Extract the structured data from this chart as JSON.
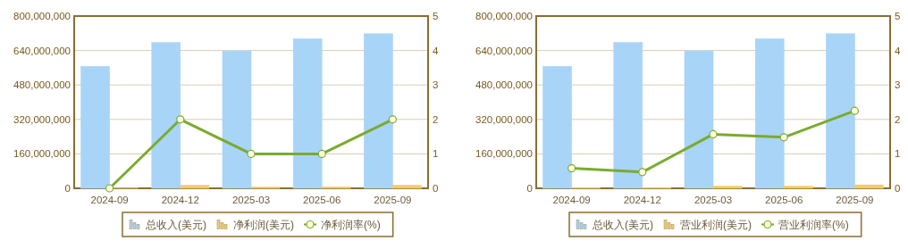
{
  "chart_data": [
    {
      "type": "bar",
      "categories": [
        "2024-09",
        "2024-12",
        "2025-03",
        "2025-06",
        "2025-09"
      ],
      "series": [
        {
          "name": "总收入(美元)",
          "color": "#a8d4f7",
          "values": [
            566000000,
            677000000,
            638000000,
            694000000,
            718000000
          ]
        },
        {
          "name": "净利润(美元)",
          "color": "#f2cc6a",
          "values": [
            1000000,
            14000000,
            6000000,
            7000000,
            14000000
          ]
        },
        {
          "name": "净利润率(%)",
          "type": "line",
          "axis": "y2",
          "color": "#7aab2f",
          "marker": "circle",
          "values": [
            0,
            2,
            1,
            1,
            2
          ]
        }
      ],
      "ylim": [
        0,
        800000000
      ],
      "yticks": [
        {
          "value": 0,
          "label": "0"
        },
        {
          "value": 160000000,
          "label": "160,000,000"
        },
        {
          "value": 320000000,
          "label": "320,000,000"
        },
        {
          "value": 480000000,
          "label": "480,000,000"
        },
        {
          "value": 640000000,
          "label": "640,000,000"
        },
        {
          "value": 800000000,
          "label": "800,000,000"
        }
      ],
      "y2lim": [
        0,
        5
      ],
      "y2ticks": [
        0,
        1,
        2,
        3,
        4,
        5
      ],
      "grid": "y",
      "legend": "bottom"
    },
    {
      "type": "bar",
      "categories": [
        "2024-09",
        "2024-12",
        "2025-03",
        "2025-06",
        "2025-09"
      ],
      "series": [
        {
          "name": "总收入(美元)",
          "color": "#a8d4f7",
          "values": [
            566000000,
            677000000,
            638000000,
            694000000,
            718000000
          ]
        },
        {
          "name": "营业利润(美元)",
          "color": "#f2cc6a",
          "values": [
            3000000,
            3000000,
            10000000,
            10000000,
            16000000
          ]
        },
        {
          "name": "营业利润率(%)",
          "type": "line",
          "axis": "y2",
          "color": "#7aab2f",
          "marker": "circle",
          "values": [
            0.58,
            0.47,
            1.57,
            1.48,
            2.25
          ]
        }
      ],
      "ylim": [
        0,
        800000000
      ],
      "yticks": [
        {
          "value": 0,
          "label": "0"
        },
        {
          "value": 160000000,
          "label": "160,000,000"
        },
        {
          "value": 320000000,
          "label": "320,000,000"
        },
        {
          "value": 480000000,
          "label": "480,000,000"
        },
        {
          "value": 640000000,
          "label": "640,000,000"
        },
        {
          "value": 800000000,
          "label": "800,000,000"
        }
      ],
      "y2lim": [
        0,
        5
      ],
      "y2ticks": [
        0,
        1,
        2,
        3,
        4,
        5
      ],
      "grid": "y",
      "legend": "bottom"
    }
  ]
}
